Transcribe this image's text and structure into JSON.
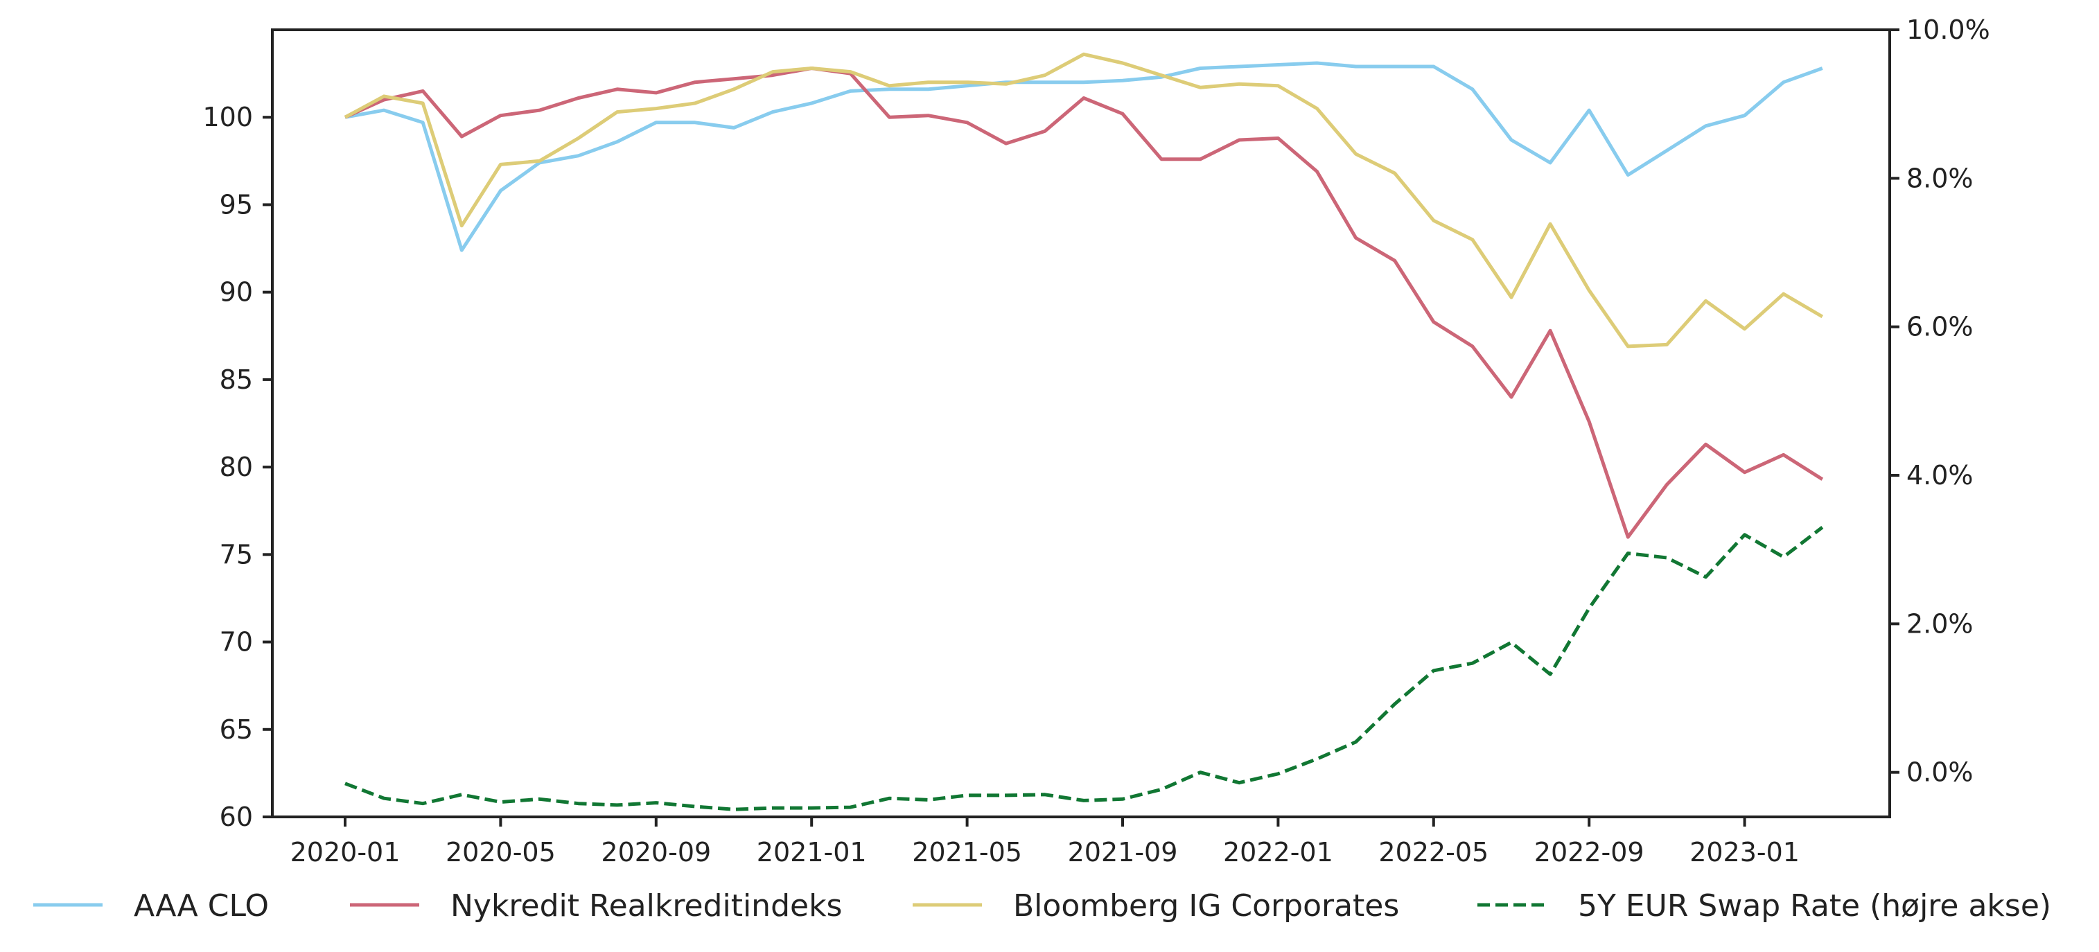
{
  "chart_data": {
    "type": "line",
    "title": "",
    "xlabel": "",
    "ylabel": "",
    "y2label": "",
    "x": [
      "2020-01",
      "2020-02",
      "2020-03",
      "2020-04",
      "2020-05",
      "2020-06",
      "2020-07",
      "2020-08",
      "2020-09",
      "2020-10",
      "2020-11",
      "2020-12",
      "2021-01",
      "2021-02",
      "2021-03",
      "2021-04",
      "2021-05",
      "2021-06",
      "2021-07",
      "2021-08",
      "2021-09",
      "2021-10",
      "2021-11",
      "2021-12",
      "2022-01",
      "2022-02",
      "2022-03",
      "2022-04",
      "2022-05",
      "2022-06",
      "2022-07",
      "2022-08",
      "2022-09",
      "2022-10",
      "2022-11",
      "2022-12",
      "2023-01",
      "2023-02",
      "2023-03"
    ],
    "x_tick_labels": [
      "2020-01",
      "2020-05",
      "2020-09",
      "2021-01",
      "2021-05",
      "2021-09",
      "2022-01",
      "2022-05",
      "2022-09",
      "2023-01"
    ],
    "ylim": [
      60,
      105
    ],
    "y_ticks": [
      60,
      65,
      70,
      75,
      80,
      85,
      90,
      95,
      100
    ],
    "y2lim": [
      -0.6,
      10.0
    ],
    "y2_ticks": [
      0.0,
      2.0,
      4.0,
      6.0,
      8.0,
      10.0
    ],
    "y2_tick_labels": [
      "0.0%",
      "2.0%",
      "4.0%",
      "6.0%",
      "8.0%",
      "10.0%"
    ],
    "legend_position": "bottom",
    "grid": false,
    "series": [
      {
        "name": "AAA CLO",
        "axis": "left",
        "color": "#88ccee",
        "dash": "solid",
        "values": [
          100.0,
          100.4,
          99.7,
          92.4,
          95.8,
          97.4,
          97.8,
          98.6,
          99.7,
          99.7,
          99.4,
          100.3,
          100.8,
          101.5,
          101.6,
          101.6,
          101.8,
          102.0,
          102.0,
          102.0,
          102.1,
          102.3,
          102.8,
          102.9,
          103.0,
          103.1,
          102.9,
          102.9,
          102.9,
          101.6,
          98.7,
          97.4,
          100.4,
          96.7,
          98.1,
          99.5,
          100.1,
          102.0,
          102.8
        ]
      },
      {
        "name": "Nykredit Realkreditindeks",
        "axis": "left",
        "color": "#cc6677",
        "dash": "solid",
        "values": [
          100.0,
          101.0,
          101.5,
          98.9,
          100.1,
          100.4,
          101.1,
          101.6,
          101.4,
          102.0,
          102.2,
          102.4,
          102.8,
          102.5,
          100.0,
          100.1,
          99.7,
          98.5,
          99.2,
          101.1,
          100.2,
          97.6,
          97.6,
          98.7,
          98.8,
          96.9,
          93.1,
          91.8,
          88.3,
          86.9,
          84.0,
          87.8,
          82.6,
          76.0,
          79.0,
          81.3,
          79.7,
          80.7,
          79.3
        ]
      },
      {
        "name": "Bloomberg IG Corporates",
        "axis": "left",
        "color": "#ddcc77",
        "dash": "solid",
        "values": [
          100.0,
          101.2,
          100.8,
          93.8,
          97.3,
          97.5,
          98.8,
          100.3,
          100.5,
          100.8,
          101.6,
          102.6,
          102.8,
          102.6,
          101.8,
          102.0,
          102.0,
          101.9,
          102.4,
          103.6,
          103.1,
          102.4,
          101.7,
          101.9,
          101.8,
          100.5,
          97.9,
          96.8,
          94.1,
          93.0,
          89.7,
          93.9,
          90.1,
          86.9,
          87.0,
          89.5,
          87.9,
          89.9,
          88.6
        ]
      },
      {
        "name": "5Y EUR Swap Rate (højre akse)",
        "axis": "right",
        "color": "#117733",
        "dash": "dashed",
        "values": [
          -0.15,
          -0.35,
          -0.42,
          -0.3,
          -0.4,
          -0.36,
          -0.42,
          -0.44,
          -0.41,
          -0.46,
          -0.5,
          -0.48,
          -0.48,
          -0.47,
          -0.35,
          -0.37,
          -0.31,
          -0.31,
          -0.3,
          -0.38,
          -0.36,
          -0.23,
          0.0,
          -0.14,
          -0.02,
          0.18,
          0.41,
          0.92,
          1.37,
          1.47,
          1.75,
          1.32,
          2.21,
          2.95,
          2.89,
          2.63,
          3.2,
          2.9,
          3.3
        ]
      }
    ]
  }
}
